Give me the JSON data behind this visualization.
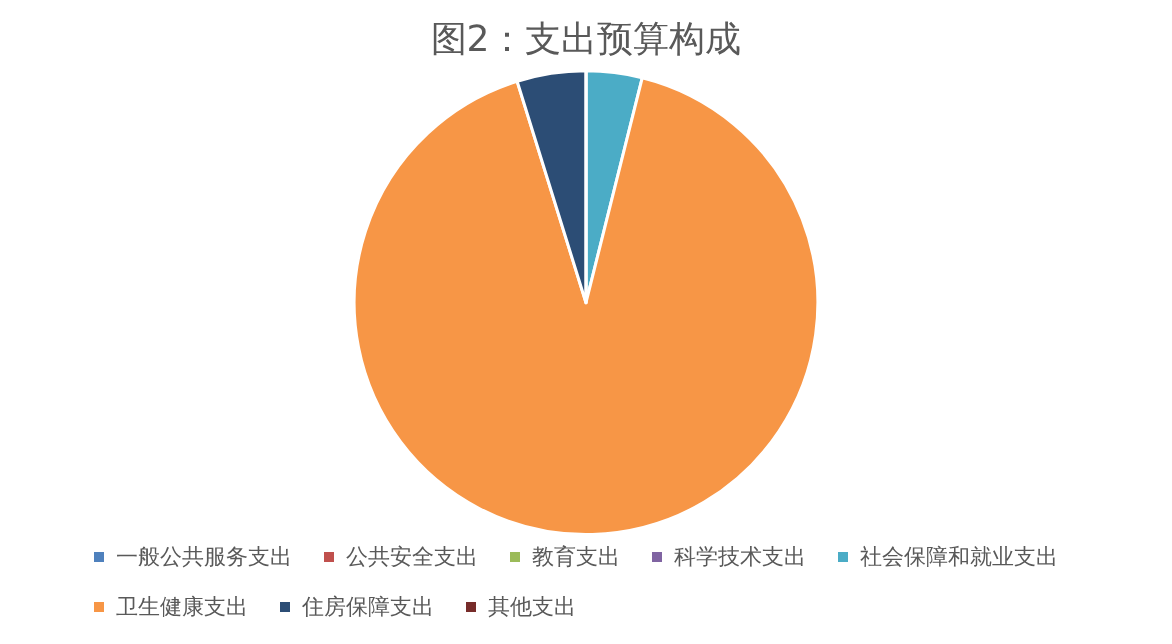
{
  "chart_data": {
    "type": "pie",
    "title": "图2：支出预算构成",
    "categories": [
      "一般公共服务支出",
      "公共安全支出",
      "教育支出",
      "科学技术支出",
      "社会保障和就业支出",
      "卫生健康支出",
      "住房保障支出",
      "其他支出"
    ],
    "values": [
      0,
      0,
      0,
      0,
      3.9,
      91.3,
      4.8,
      0
    ],
    "colors": [
      "#4f81bd",
      "#c0504d",
      "#9bbb59",
      "#8064a2",
      "#4bacc6",
      "#f79646",
      "#2c4d75",
      "#772c2a"
    ],
    "legend": "bottom"
  }
}
